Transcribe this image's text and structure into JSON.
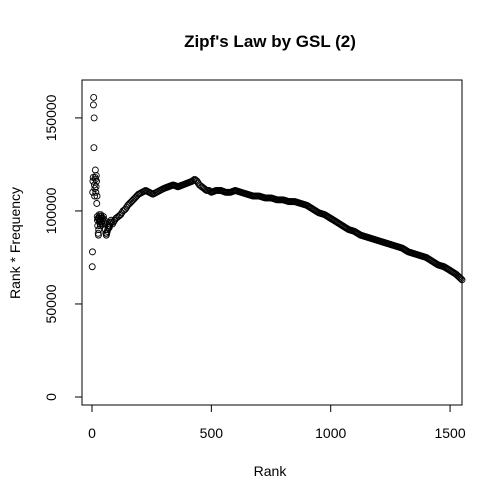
{
  "chart_data": {
    "type": "scatter",
    "title": "Zipf's Law by GSL (2)",
    "xlabel": "Rank",
    "ylabel": "Rank * Frequency",
    "xlim": [
      0,
      1550
    ],
    "ylim": [
      0,
      165000
    ],
    "x_ticks": [
      0,
      500,
      1000,
      1500
    ],
    "x_tick_labels": [
      "0",
      "500",
      "1000",
      "1500"
    ],
    "y_ticks": [
      0,
      50000,
      100000,
      150000
    ],
    "y_tick_labels": [
      "0",
      "50000",
      "100000",
      "150000"
    ],
    "grid": false,
    "legend": "none",
    "marker": "open-circle",
    "colors": {
      "points": "#000000",
      "axes": "#000000",
      "background": "#ffffff"
    },
    "series": [
      {
        "x": [
          1,
          2,
          3,
          4,
          5,
          6,
          7,
          8,
          9,
          10,
          11,
          12,
          13,
          14,
          15,
          16,
          17,
          18,
          19,
          20,
          21,
          22,
          23,
          24,
          25,
          26,
          27,
          28,
          29,
          30,
          31,
          32,
          33,
          34,
          35,
          36,
          37,
          38,
          39,
          40,
          42,
          44,
          46,
          48,
          50,
          52,
          54,
          56,
          58,
          60,
          62,
          64,
          66,
          68,
          70,
          72,
          74,
          76,
          78,
          80,
          83,
          86,
          90,
          95,
          100,
          110,
          120,
          130,
          140,
          150,
          165,
          180,
          195,
          210,
          225,
          240,
          255,
          270,
          285,
          300,
          320,
          340,
          360,
          380,
          400,
          420,
          430,
          440,
          450,
          460,
          470,
          480,
          490,
          500,
          520,
          540,
          560,
          580,
          600,
          625,
          650,
          675,
          700,
          725,
          750,
          775,
          800,
          825,
          850,
          875,
          900,
          925,
          950,
          975,
          1000,
          1025,
          1050,
          1075,
          1100,
          1125,
          1150,
          1175,
          1200,
          1225,
          1250,
          1275,
          1300,
          1325,
          1350,
          1375,
          1400,
          1425,
          1450,
          1475,
          1500,
          1525,
          1550
        ],
        "y": [
          70000,
          78000,
          110000,
          116000,
          118000,
          157000,
          161000,
          134000,
          150000,
          114000,
          108000,
          112000,
          118000,
          122000,
          117000,
          110000,
          113000,
          119000,
          116000,
          104000,
          108000,
          97000,
          95000,
          92000,
          96000,
          88000,
          87000,
          90000,
          96000,
          98000,
          94000,
          95000,
          97000,
          93000,
          92000,
          95000,
          98000,
          96000,
          97000,
          94000,
          93000,
          95000,
          96000,
          97000,
          94000,
          95000,
          93000,
          90000,
          88000,
          87000,
          88000,
          89000,
          90000,
          91000,
          92000,
          91000,
          92000,
          93000,
          94000,
          95000,
          94000,
          93000,
          94000,
          95000,
          96000,
          97000,
          98000,
          100000,
          101000,
          103000,
          105000,
          107000,
          109000,
          110000,
          111000,
          110000,
          109000,
          110000,
          111000,
          112000,
          113000,
          114000,
          113000,
          114000,
          115000,
          116000,
          117000,
          116000,
          114000,
          113000,
          112000,
          111000,
          111000,
          110000,
          111000,
          111000,
          110000,
          110000,
          111000,
          110000,
          109000,
          108000,
          108000,
          107000,
          107000,
          106000,
          106000,
          105000,
          105000,
          104000,
          103000,
          101000,
          99000,
          98000,
          96000,
          94000,
          92000,
          90000,
          89000,
          87000,
          86000,
          85000,
          84000,
          83000,
          82000,
          81000,
          80000,
          78000,
          77000,
          76000,
          75000,
          73000,
          71000,
          70000,
          68000,
          66000,
          63000
        ]
      }
    ]
  }
}
